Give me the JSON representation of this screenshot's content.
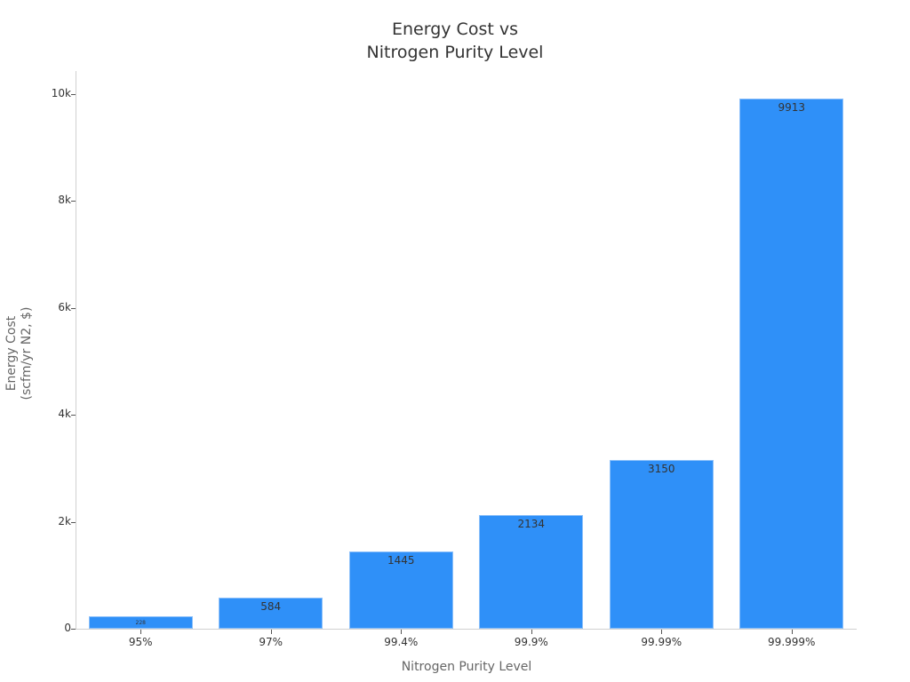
{
  "chart_data": {
    "type": "bar",
    "title": "Energy Cost vs\nNitrogen Purity Level",
    "title_lines": [
      "Energy Cost vs",
      "Nitrogen Purity Level"
    ],
    "xlabel": "Nitrogen Purity Level",
    "ylabel": "Energy Cost\n(scfm/yr N2, $)",
    "ylabel_lines": [
      "Energy Cost",
      "(scfm/yr N2, $)"
    ],
    "categories": [
      "95%",
      "97%",
      "99.4%",
      "99.9%",
      "99.99%",
      "99.999%"
    ],
    "values": [
      228,
      584,
      1445,
      2134,
      3150,
      9913
    ],
    "data_labels": [
      "228",
      "584",
      "1445",
      "2134",
      "3150",
      "9913"
    ],
    "ylim": [
      0,
      10430
    ],
    "yticks": [
      0,
      2000,
      4000,
      6000,
      8000,
      10000
    ],
    "ytick_labels": [
      "0",
      "2k",
      "4k",
      "6k",
      "8k",
      "10k"
    ],
    "grid": false,
    "legend": null,
    "bar_color": "#2f90f8"
  }
}
